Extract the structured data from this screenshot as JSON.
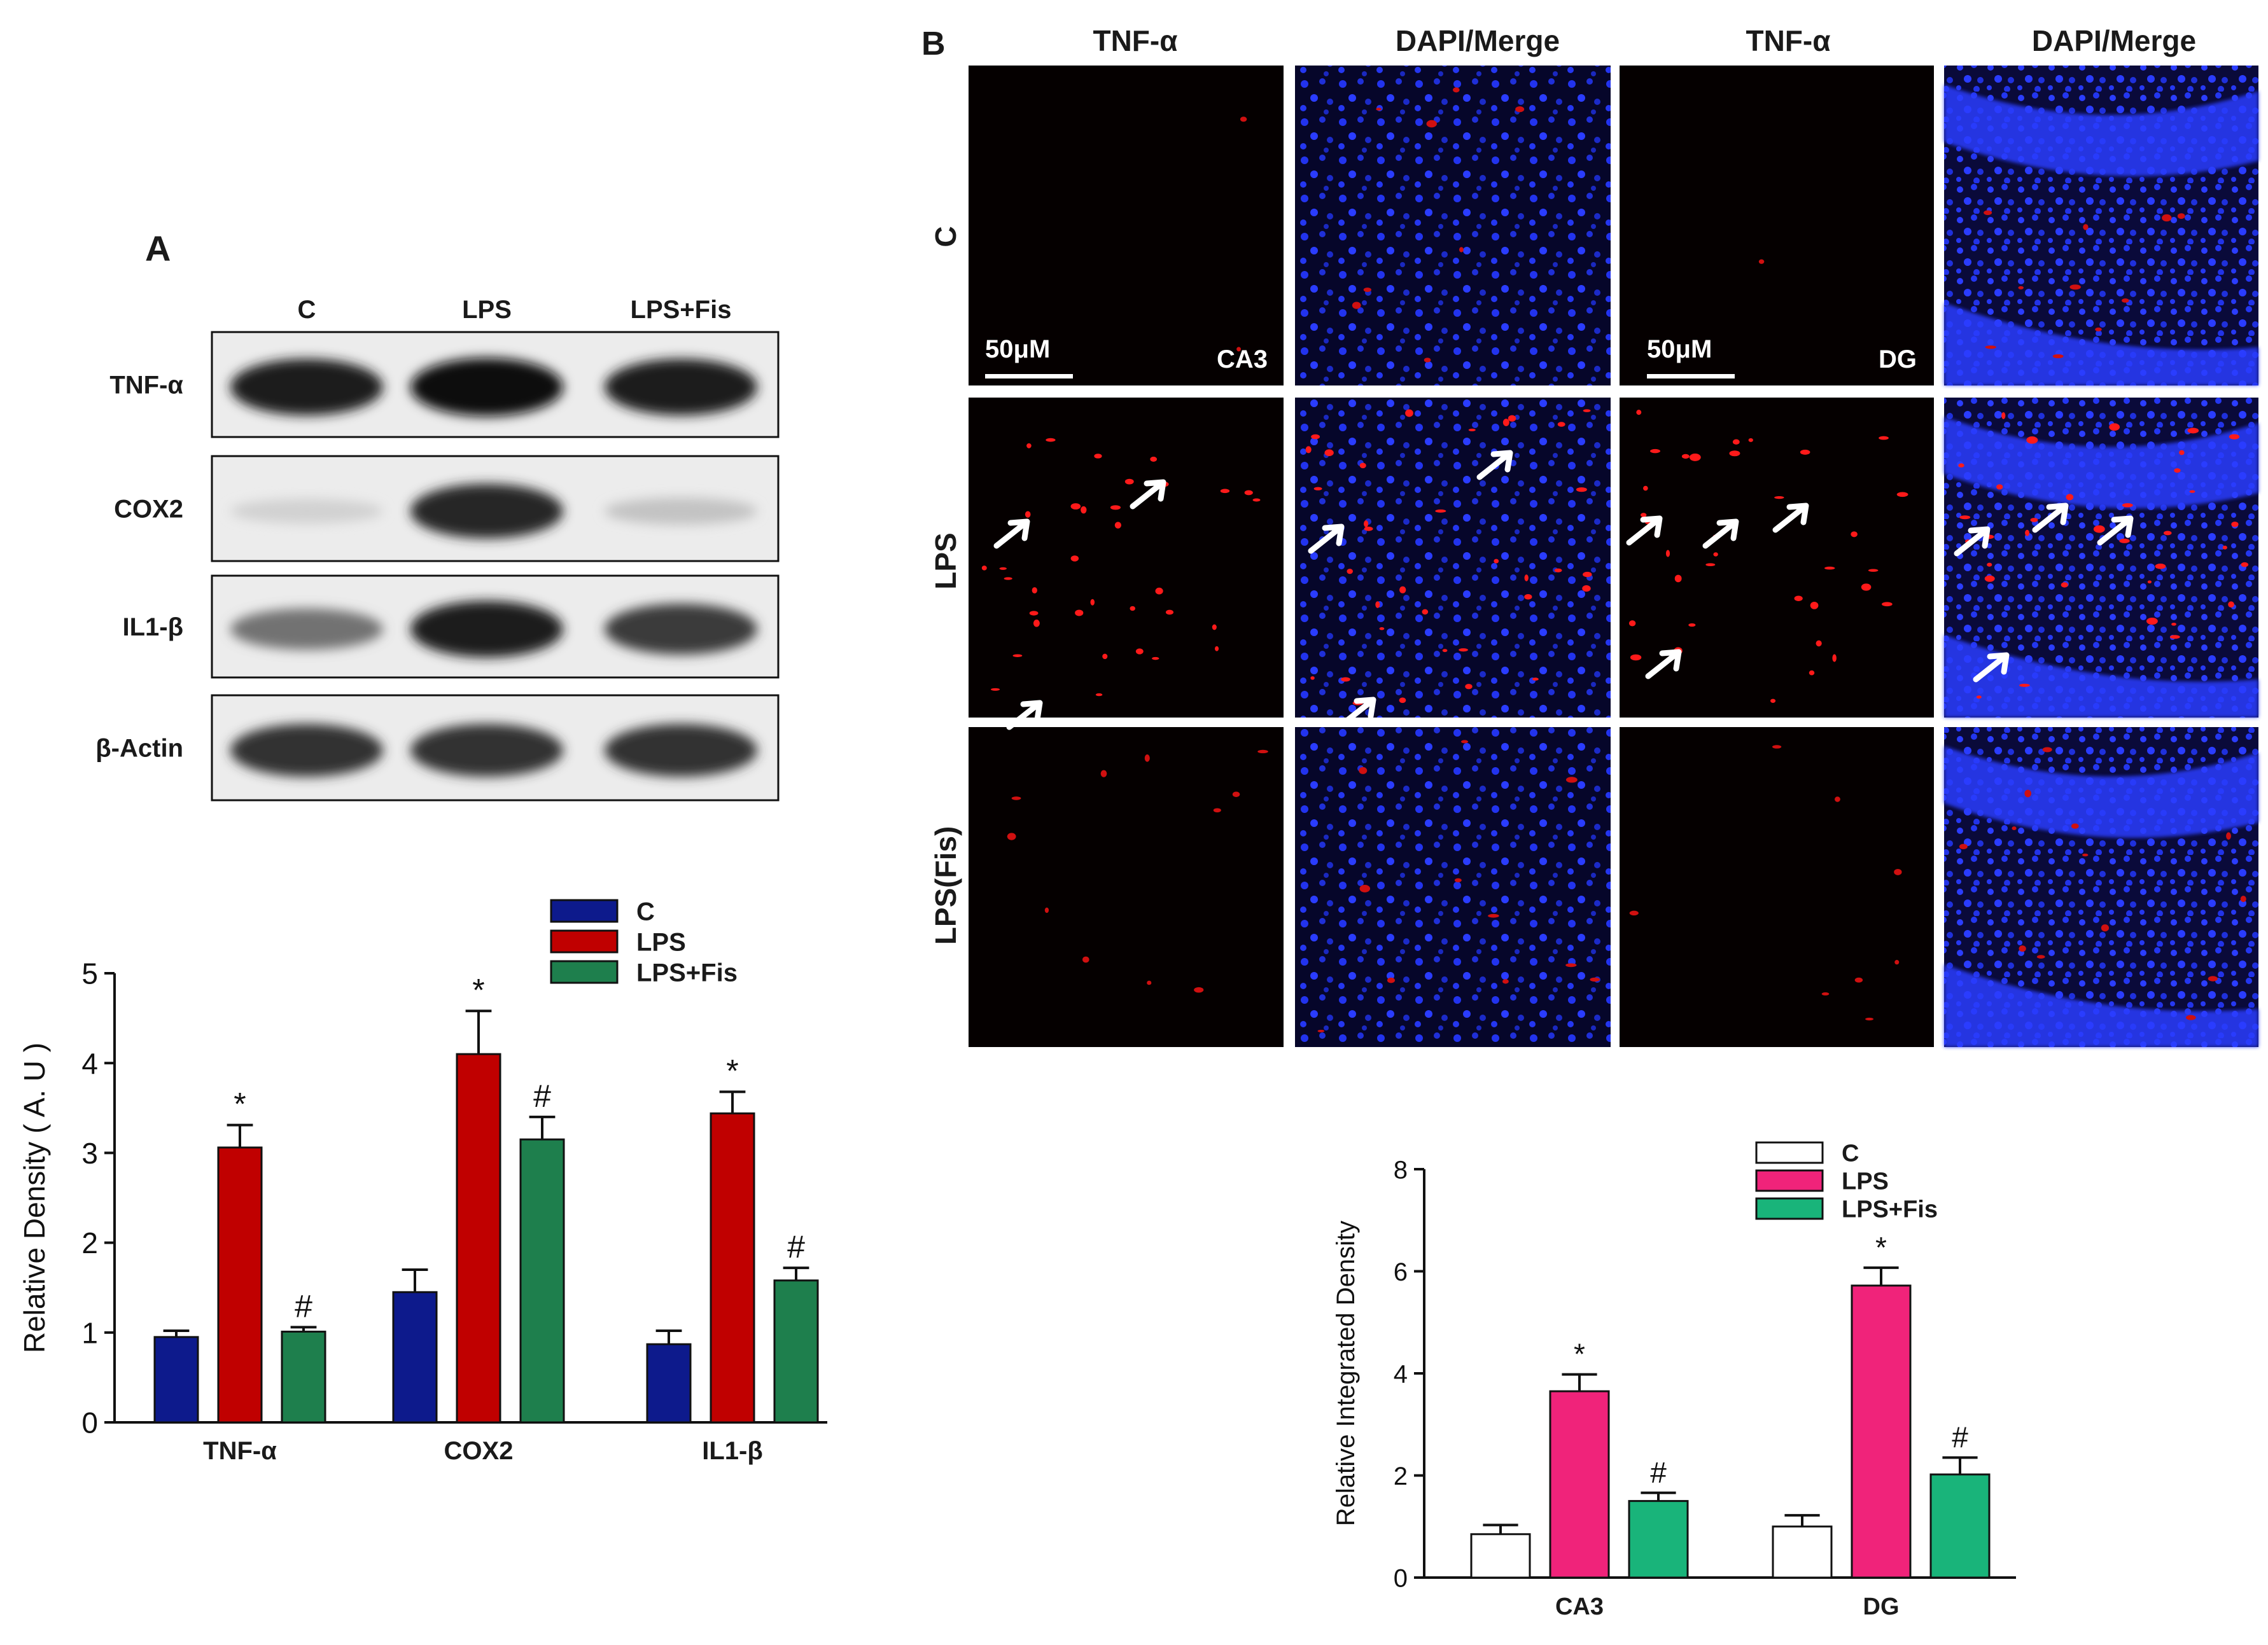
{
  "panel_a": {
    "letter": "A",
    "lanes": [
      "C",
      "LPS",
      "LPS+Fis"
    ],
    "blots": [
      {
        "label": "TNF-α",
        "intensity": [
          0.95,
          1.0,
          0.95
        ]
      },
      {
        "label": "COX2",
        "intensity": [
          0.12,
          0.9,
          0.18
        ]
      },
      {
        "label": "IL1-β",
        "intensity": [
          0.55,
          0.95,
          0.8
        ]
      },
      {
        "label": "β-Actin",
        "intensity": [
          0.85,
          0.85,
          0.85
        ]
      }
    ]
  },
  "panel_b": {
    "letter": "B",
    "column_headers": [
      "TNF-α",
      "DAPI/Merge",
      "TNF-α",
      "DAPI/Merge"
    ],
    "row_labels": [
      "C",
      "LPS",
      "LPS(Fis)"
    ],
    "scale_bars": [
      "50μM",
      "50μM"
    ],
    "region_labels": [
      "CA3",
      "DG"
    ]
  },
  "chart_data": [
    {
      "type": "bar",
      "categories": [
        "TNF-α",
        "COX2",
        "IL1-β"
      ],
      "series": [
        {
          "name": "C",
          "values": [
            0.95,
            1.45,
            0.87
          ],
          "errors": [
            0.07,
            0.25,
            0.15
          ],
          "markers": [
            "",
            "",
            ""
          ],
          "color": "#0d1a8c"
        },
        {
          "name": "LPS",
          "values": [
            3.06,
            4.1,
            3.44
          ],
          "errors": [
            0.25,
            0.48,
            0.24
          ],
          "markers": [
            "*",
            "*",
            "*"
          ],
          "color": "#c00000"
        },
        {
          "name": "LPS+Fis",
          "values": [
            1.01,
            3.15,
            1.58
          ],
          "errors": [
            0.05,
            0.25,
            0.14
          ],
          "markers": [
            "#",
            "#",
            "#"
          ],
          "color": "#1e7f4d"
        }
      ],
      "ylabel": "Relative Density ( A. U )",
      "ylim": [
        0,
        5
      ],
      "yticks": [
        "0",
        "1",
        "2",
        "3",
        "4",
        "5"
      ],
      "legend": "top-right"
    },
    {
      "type": "bar",
      "categories": [
        "CA3",
        "DG"
      ],
      "series": [
        {
          "name": "C",
          "values": [
            0.85,
            1.0
          ],
          "errors": [
            0.18,
            0.22
          ],
          "markers": [
            "",
            ""
          ],
          "color": "#ffffff"
        },
        {
          "name": "LPS",
          "values": [
            3.65,
            5.72
          ],
          "errors": [
            0.33,
            0.35
          ],
          "markers": [
            "*",
            "*"
          ],
          "color": "#f0237a"
        },
        {
          "name": "LPS+Fis",
          "values": [
            1.5,
            2.02
          ],
          "errors": [
            0.16,
            0.33
          ],
          "markers": [
            "#",
            "#"
          ],
          "color": "#19b47a"
        }
      ],
      "ylabel": "Relative Integrated Density",
      "ylim": [
        0,
        8
      ],
      "yticks": [
        "0",
        "2",
        "4",
        "6",
        "8"
      ],
      "legend": "top-right"
    }
  ]
}
